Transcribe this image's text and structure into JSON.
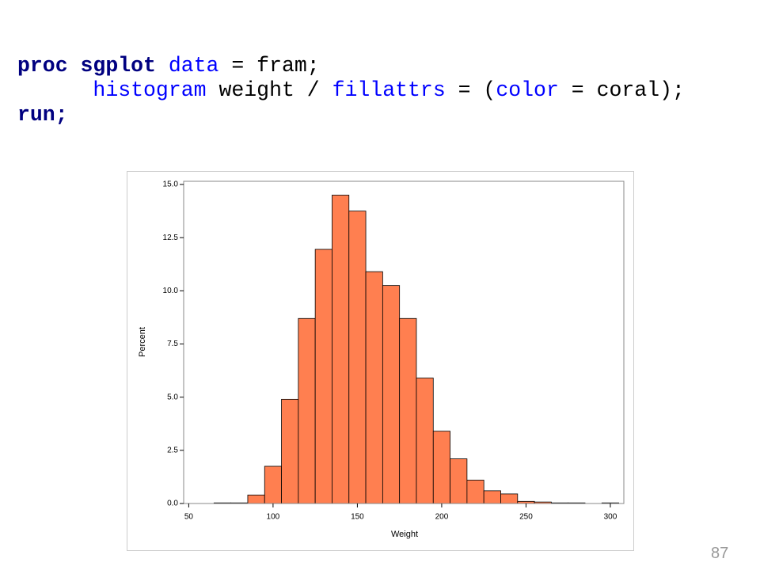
{
  "code": {
    "lines": [
      [
        "proc sgplot",
        "data",
        "= fram;"
      ],
      [
        "histogram",
        "weight /",
        "fillattrs",
        "= (",
        "color",
        "= coral);"
      ],
      [
        "run;"
      ]
    ]
  },
  "page_number": "87",
  "chart_data": {
    "type": "histogram",
    "xlabel": "Weight",
    "ylabel": "Percent",
    "color": "#ff7f50",
    "bins": [
      65,
      75,
      85,
      95,
      105,
      115,
      125,
      135,
      145,
      155,
      165,
      175,
      185,
      195,
      205,
      215,
      225,
      235,
      245,
      255,
      265,
      275,
      285,
      295,
      305
    ],
    "counts": [
      0.03,
      0.03,
      0.4,
      1.75,
      4.9,
      8.7,
      11.95,
      14.5,
      13.75,
      10.9,
      10.25,
      8.7,
      5.9,
      3.4,
      2.1,
      1.1,
      0.6,
      0.45,
      0.1,
      0.07,
      0.03,
      0.03,
      0,
      0.03
    ],
    "xlim": [
      47,
      308
    ],
    "xticks": [
      50,
      100,
      150,
      200,
      250,
      300
    ],
    "ylim": [
      0,
      15.15
    ],
    "yticks": [
      {
        "value": 0,
        "label": "0.0"
      },
      2.5,
      {
        "value": 5,
        "label": "5.0"
      },
      7.5,
      {
        "value": 10,
        "label": "10.0"
      },
      12.5,
      {
        "value": 15,
        "label": "15.0"
      }
    ]
  }
}
